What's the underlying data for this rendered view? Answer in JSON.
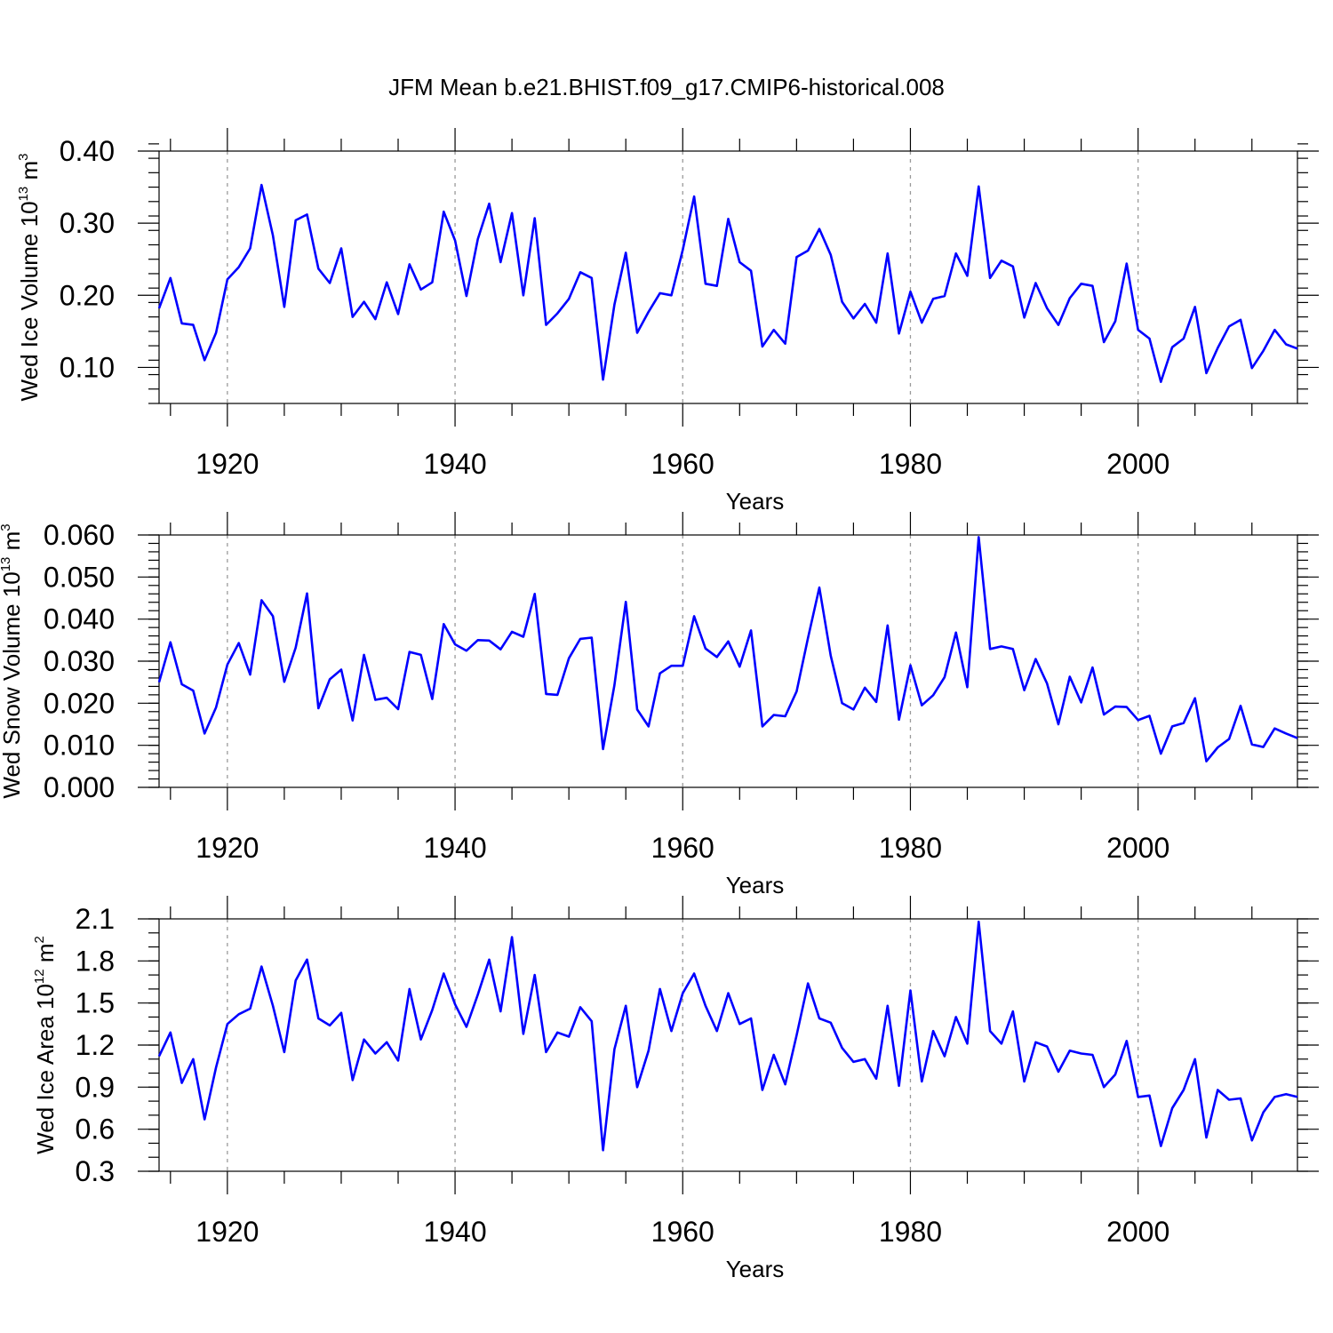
{
  "title": "JFM Mean b.e21.BHIST.f09_g17.CMIP6-historical.008",
  "series_color": "#0000ff",
  "chart_data": [
    {
      "type": "line",
      "panel": "top",
      "ylabel_main": "Wed Ice Volume 10",
      "ylabel_exp": "13",
      "ylabel_unit": " m",
      "ylabel_unit_exp": "3",
      "xlabel": "Years",
      "xlim": [
        1914,
        2014
      ],
      "ylim": [
        0.05,
        0.4
      ],
      "yticks": [
        0.1,
        0.2,
        0.3,
        0.4
      ],
      "ytick_labels": [
        "0.10",
        "0.20",
        "0.30",
        "0.40"
      ],
      "ytick_minor_step": 0.02,
      "xticks": [
        1920,
        1940,
        1960,
        1980,
        2000
      ],
      "xtick_labels": [
        "1920",
        "1940",
        "1960",
        "1980",
        "2000"
      ],
      "x_start": 1914,
      "values": [
        0.182,
        0.224,
        0.161,
        0.159,
        0.11,
        0.148,
        0.222,
        0.239,
        0.265,
        0.353,
        0.283,
        0.184,
        0.304,
        0.312,
        0.237,
        0.217,
        0.265,
        0.17,
        0.191,
        0.167,
        0.218,
        0.174,
        0.243,
        0.208,
        0.218,
        0.316,
        0.276,
        0.199,
        0.278,
        0.327,
        0.246,
        0.314,
        0.2,
        0.307,
        0.159,
        0.175,
        0.195,
        0.232,
        0.224,
        0.083,
        0.187,
        0.259,
        0.148,
        0.177,
        0.203,
        0.2,
        0.263,
        0.337,
        0.216,
        0.213,
        0.306,
        0.246,
        0.234,
        0.129,
        0.152,
        0.133,
        0.253,
        0.262,
        0.292,
        0.256,
        0.191,
        0.168,
        0.188,
        0.162,
        0.258,
        0.147,
        0.205,
        0.162,
        0.195,
        0.199,
        0.258,
        0.227,
        0.351,
        0.224,
        0.248,
        0.24,
        0.169,
        0.217,
        0.182,
        0.159,
        0.196,
        0.216,
        0.213,
        0.135,
        0.164,
        0.244,
        0.152,
        0.14,
        0.08,
        0.128,
        0.14,
        0.184,
        0.092,
        0.127,
        0.157,
        0.166,
        0.099,
        0.123,
        0.152,
        0.132,
        0.126
      ]
    },
    {
      "type": "line",
      "panel": "middle",
      "ylabel_main": "Wed Snow Volume 10",
      "ylabel_exp": "13",
      "ylabel_unit": " m",
      "ylabel_unit_exp": "3",
      "xlabel": "Years",
      "xlim": [
        1914,
        2014
      ],
      "ylim": [
        0.0,
        0.06
      ],
      "yticks": [
        0.0,
        0.01,
        0.02,
        0.03,
        0.04,
        0.05,
        0.06
      ],
      "ytick_labels": [
        "0.000",
        "0.010",
        "0.020",
        "0.030",
        "0.040",
        "0.050",
        "0.060"
      ],
      "ytick_minor_step": 0.002,
      "xticks": [
        1920,
        1940,
        1960,
        1980,
        2000
      ],
      "xtick_labels": [
        "1920",
        "1940",
        "1960",
        "1980",
        "2000"
      ],
      "x_start": 1914,
      "values": [
        0.025,
        0.0345,
        0.0245,
        0.023,
        0.0128,
        0.019,
        0.0292,
        0.0343,
        0.0268,
        0.0445,
        0.0407,
        0.0251,
        0.0332,
        0.0461,
        0.0188,
        0.0257,
        0.028,
        0.0159,
        0.0315,
        0.0208,
        0.0213,
        0.0186,
        0.0322,
        0.0315,
        0.021,
        0.0388,
        0.034,
        0.0325,
        0.035,
        0.0349,
        0.0328,
        0.037,
        0.0358,
        0.046,
        0.0222,
        0.022,
        0.0307,
        0.0353,
        0.0356,
        0.0091,
        0.0243,
        0.0441,
        0.0185,
        0.0145,
        0.0271,
        0.0289,
        0.0289,
        0.0407,
        0.033,
        0.031,
        0.0347,
        0.0287,
        0.0373,
        0.0145,
        0.0172,
        0.0169,
        0.0228,
        0.0355,
        0.0475,
        0.0313,
        0.02,
        0.0185,
        0.0237,
        0.0203,
        0.0385,
        0.0161,
        0.029,
        0.0195,
        0.0219,
        0.0262,
        0.0368,
        0.0238,
        0.0595,
        0.0329,
        0.0335,
        0.0329,
        0.0231,
        0.0305,
        0.0247,
        0.015,
        0.0263,
        0.0202,
        0.0285,
        0.0173,
        0.0192,
        0.0191,
        0.016,
        0.017,
        0.008,
        0.0145,
        0.0153,
        0.0212,
        0.0062,
        0.0095,
        0.0115,
        0.0194,
        0.0102,
        0.0096,
        0.014,
        0.0128,
        0.0117
      ]
    },
    {
      "type": "line",
      "panel": "bottom",
      "ylabel_main": "Wed Ice Area 10",
      "ylabel_exp": "12",
      "ylabel_unit": " m",
      "ylabel_unit_exp": "2",
      "xlabel": "Years",
      "xlim": [
        1914,
        2014
      ],
      "ylim": [
        0.3,
        2.1
      ],
      "yticks": [
        0.3,
        0.6,
        0.9,
        1.2,
        1.5,
        1.8,
        2.1
      ],
      "ytick_labels": [
        "0.3",
        "0.6",
        "0.9",
        "1.2",
        "1.5",
        "1.8",
        "2.1"
      ],
      "ytick_minor_step": 0.1,
      "xticks": [
        1920,
        1940,
        1960,
        1980,
        2000
      ],
      "xtick_labels": [
        "1920",
        "1940",
        "1960",
        "1980",
        "2000"
      ],
      "x_start": 1914,
      "values": [
        1.12,
        1.29,
        0.93,
        1.1,
        0.67,
        1.04,
        1.35,
        1.42,
        1.46,
        1.76,
        1.48,
        1.15,
        1.66,
        1.81,
        1.39,
        1.34,
        1.43,
        0.95,
        1.24,
        1.14,
        1.22,
        1.09,
        1.6,
        1.24,
        1.45,
        1.71,
        1.49,
        1.33,
        1.56,
        1.81,
        1.44,
        1.97,
        1.28,
        1.7,
        1.15,
        1.29,
        1.26,
        1.47,
        1.37,
        0.45,
        1.17,
        1.48,
        0.9,
        1.16,
        1.6,
        1.3,
        1.57,
        1.71,
        1.48,
        1.3,
        1.57,
        1.35,
        1.39,
        0.88,
        1.13,
        0.92,
        1.27,
        1.64,
        1.39,
        1.36,
        1.18,
        1.08,
        1.1,
        0.96,
        1.48,
        0.91,
        1.59,
        0.94,
        1.3,
        1.12,
        1.4,
        1.21,
        2.08,
        1.3,
        1.21,
        1.44,
        0.94,
        1.22,
        1.19,
        1.01,
        1.16,
        1.14,
        1.13,
        0.9,
        0.99,
        1.23,
        0.83,
        0.84,
        0.48,
        0.75,
        0.88,
        1.1,
        0.54,
        0.88,
        0.81,
        0.82,
        0.52,
        0.72,
        0.83,
        0.85,
        0.83
      ]
    }
  ]
}
